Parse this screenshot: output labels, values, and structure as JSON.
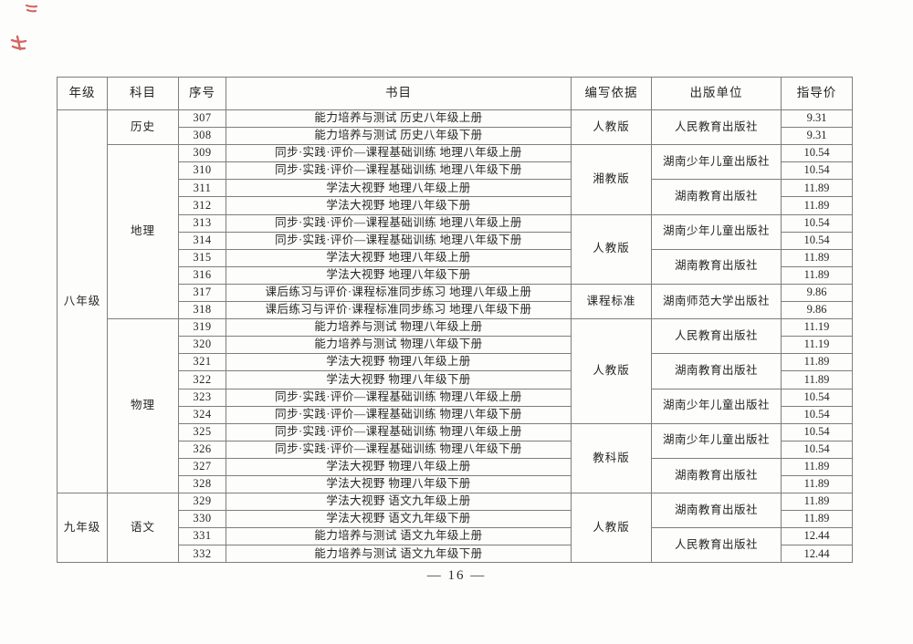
{
  "page": {
    "number_label": "— 16 —",
    "background": "#fdfdfc"
  },
  "colors": {
    "table_border": "#7e7e7e",
    "text": "#262626",
    "red_ink": "#c5372c"
  },
  "table": {
    "headers": [
      "年级",
      "科目",
      "序号",
      "书目",
      "编写依据",
      "出版单位",
      "指导价"
    ],
    "rows": [
      {
        "no": "307",
        "title": "能力培养与测试 历史八年级上册",
        "price": "9.31"
      },
      {
        "no": "308",
        "title": "能力培养与测试 历史八年级下册",
        "price": "9.31"
      },
      {
        "no": "309",
        "title": "同步·实践·评价—课程基础训练 地理八年级上册",
        "price": "10.54"
      },
      {
        "no": "310",
        "title": "同步·实践·评价—课程基础训练 地理八年级下册",
        "price": "10.54"
      },
      {
        "no": "311",
        "title": "学法大视野 地理八年级上册",
        "price": "11.89"
      },
      {
        "no": "312",
        "title": "学法大视野 地理八年级下册",
        "price": "11.89"
      },
      {
        "no": "313",
        "title": "同步·实践·评价—课程基础训练 地理八年级上册",
        "price": "10.54"
      },
      {
        "no": "314",
        "title": "同步·实践·评价—课程基础训练 地理八年级下册",
        "price": "10.54"
      },
      {
        "no": "315",
        "title": "学法大视野 地理八年级上册",
        "price": "11.89"
      },
      {
        "no": "316",
        "title": "学法大视野 地理八年级下册",
        "price": "11.89"
      },
      {
        "no": "317",
        "title": "课后练习与评价·课程标准同步练习 地理八年级上册",
        "price": "9.86"
      },
      {
        "no": "318",
        "title": "课后练习与评价·课程标准同步练习 地理八年级下册",
        "price": "9.86"
      },
      {
        "no": "319",
        "title": "能力培养与测试 物理八年级上册",
        "price": "11.19"
      },
      {
        "no": "320",
        "title": "能力培养与测试 物理八年级下册",
        "price": "11.19"
      },
      {
        "no": "321",
        "title": "学法大视野 物理八年级上册",
        "price": "11.89"
      },
      {
        "no": "322",
        "title": "学法大视野 物理八年级下册",
        "price": "11.89"
      },
      {
        "no": "323",
        "title": "同步·实践·评价—课程基础训练 物理八年级上册",
        "price": "10.54"
      },
      {
        "no": "324",
        "title": "同步·实践·评价—课程基础训练 物理八年级下册",
        "price": "10.54"
      },
      {
        "no": "325",
        "title": "同步·实践·评价—课程基础训练 物理八年级上册",
        "price": "10.54"
      },
      {
        "no": "326",
        "title": "同步·实践·评价—课程基础训练 物理八年级下册",
        "price": "10.54"
      },
      {
        "no": "327",
        "title": "学法大视野 物理八年级上册",
        "price": "11.89"
      },
      {
        "no": "328",
        "title": "学法大视野 物理八年级下册",
        "price": "11.89"
      },
      {
        "no": "329",
        "title": "学法大视野 语文九年级上册",
        "price": "11.89"
      },
      {
        "no": "330",
        "title": "学法大视野 语文九年级下册",
        "price": "11.89"
      },
      {
        "no": "331",
        "title": "能力培养与测试 语文九年级上册",
        "price": "12.44"
      },
      {
        "no": "332",
        "title": "能力培养与测试 语文九年级下册",
        "price": "12.44"
      }
    ],
    "grade_spans": [
      {
        "label": "八年级",
        "from": 307,
        "to": 328
      },
      {
        "label": "九年级",
        "from": 329,
        "to": 332
      }
    ],
    "subject_spans": [
      {
        "label": "历史",
        "from": 307,
        "to": 308
      },
      {
        "label": "地理",
        "from": 309,
        "to": 318
      },
      {
        "label": "物理",
        "from": 319,
        "to": 328
      },
      {
        "label": "语文",
        "from": 329,
        "to": 332
      }
    ],
    "basis_spans": [
      {
        "label": "人教版",
        "from": 307,
        "to": 308
      },
      {
        "label": "湘教版",
        "from": 309,
        "to": 312
      },
      {
        "label": "人教版",
        "from": 313,
        "to": 316
      },
      {
        "label": "课程标准",
        "from": 317,
        "to": 318
      },
      {
        "label": "人教版",
        "from": 319,
        "to": 324
      },
      {
        "label": "教科版",
        "from": 325,
        "to": 328
      },
      {
        "label": "人教版",
        "from": 329,
        "to": 332
      }
    ],
    "publisher_spans": [
      {
        "label": "人民教育出版社",
        "from": 307,
        "to": 308
      },
      {
        "label": "湖南少年儿童出版社",
        "from": 309,
        "to": 310
      },
      {
        "label": "湖南教育出版社",
        "from": 311,
        "to": 312
      },
      {
        "label": "湖南少年儿童出版社",
        "from": 313,
        "to": 314
      },
      {
        "label": "湖南教育出版社",
        "from": 315,
        "to": 316
      },
      {
        "label": "湖南师范大学出版社",
        "from": 317,
        "to": 318
      },
      {
        "label": "人民教育出版社",
        "from": 319,
        "to": 320
      },
      {
        "label": "湖南教育出版社",
        "from": 321,
        "to": 322
      },
      {
        "label": "湖南少年儿童出版社",
        "from": 323,
        "to": 324
      },
      {
        "label": "湖南少年儿童出版社",
        "from": 325,
        "to": 326
      },
      {
        "label": "湖南教育出版社",
        "from": 327,
        "to": 328
      },
      {
        "label": "湖南教育出版社",
        "from": 329,
        "to": 330
      },
      {
        "label": "人民教育出版社",
        "from": 331,
        "to": 332
      }
    ]
  }
}
